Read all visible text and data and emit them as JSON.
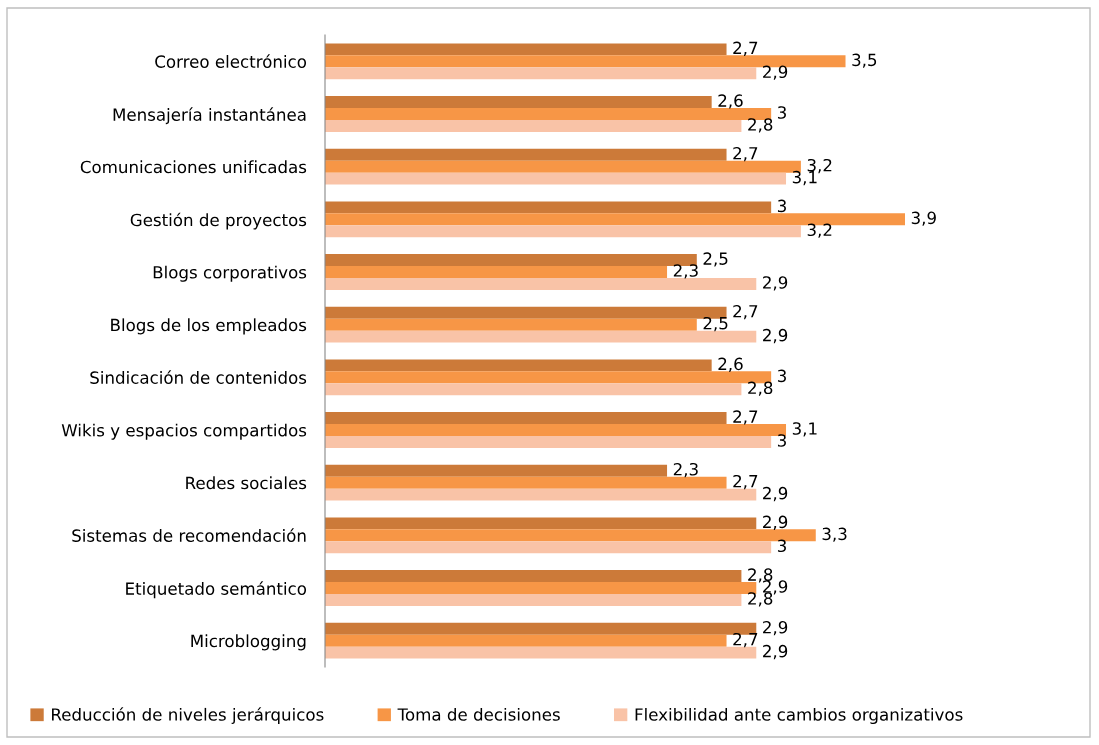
{
  "chart_data": {
    "type": "bar",
    "orientation": "horizontal",
    "categories": [
      "Correo electrónico",
      "Mensajería instantánea",
      "Comunicaciones unificadas",
      "Gestión de proyectos",
      "Blogs corporativos",
      "Blogs de los empleados",
      "Sindicación de contenidos",
      "Wikis y espacios compartidos",
      "Redes sociales",
      "Sistemas de recomendación",
      "Etiquetado semántico",
      "Microblogging"
    ],
    "series": [
      {
        "name": "Reducción de niveles jerárquicos",
        "color": "#cc7a39",
        "values": [
          2.7,
          2.6,
          2.7,
          3,
          2.5,
          2.7,
          2.6,
          2.7,
          2.3,
          2.9,
          2.8,
          2.9
        ],
        "value_labels": [
          "2,7",
          "2,6",
          "2,7",
          "3",
          "2,5",
          "2,7",
          "2,6",
          "2,7",
          "2,3",
          "2,9",
          "2,8",
          "2,9"
        ]
      },
      {
        "name": "Toma de decisiones",
        "color": "#f79646",
        "values": [
          3.5,
          3,
          3.2,
          3.9,
          2.3,
          2.5,
          3,
          3.1,
          2.7,
          3.3,
          2.9,
          2.7
        ],
        "value_labels": [
          "3,5",
          "3",
          "3,2",
          "3,9",
          "2,3",
          "2,5",
          "3",
          "3,1",
          "2,7",
          "3,3",
          "2,9",
          "2,7"
        ]
      },
      {
        "name": "Flexibilidad ante cambios organizativos",
        "color": "#f9c3a7",
        "values": [
          2.9,
          2.8,
          3.1,
          3.2,
          2.9,
          2.9,
          2.8,
          3,
          2.9,
          3,
          2.8,
          2.9
        ],
        "value_labels": [
          "2,9",
          "2,8",
          "3,1",
          "3,2",
          "2,9",
          "2,9",
          "2,8",
          "3",
          "2,9",
          "3",
          "2,8",
          "2,9"
        ]
      }
    ],
    "tick_labels": "y",
    "legend": "bottom"
  }
}
